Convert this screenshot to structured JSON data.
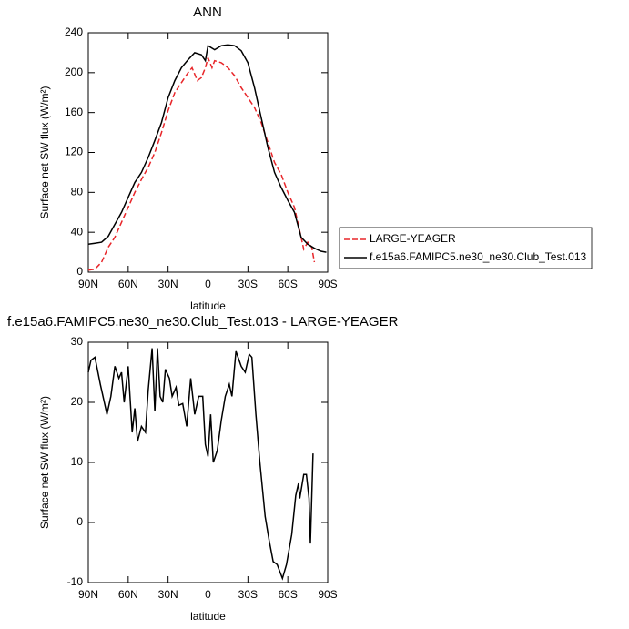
{
  "chart_data": [
    {
      "type": "line",
      "title": "ANN",
      "xlabel": "latitude",
      "ylabel": "Surface net SW flux (W/m²)",
      "xlim": [
        90,
        -90
      ],
      "xticks": [
        {
          "value": 90,
          "label": "90N"
        },
        {
          "value": 60,
          "label": "60N"
        },
        {
          "value": 30,
          "label": "30N"
        },
        0,
        {
          "value": -30,
          "label": "30S"
        },
        {
          "value": -60,
          "label": "60S"
        },
        {
          "value": -90,
          "label": "90S"
        }
      ],
      "ylim": [
        0,
        240
      ],
      "yticks": [
        0,
        40,
        80,
        120,
        160,
        200,
        240
      ],
      "legend": "right",
      "series": [
        {
          "name": "LARGE-YEAGER",
          "color": "#e8262a",
          "line_style": "dashed",
          "x": [
            90,
            85,
            80,
            75,
            70,
            65,
            60,
            55,
            50,
            45,
            40,
            35,
            30,
            25,
            20,
            15,
            12,
            8,
            5,
            2,
            0,
            -3,
            -5,
            -10,
            -15,
            -20,
            -25,
            -30,
            -35,
            -40,
            -45,
            -50,
            -55,
            -60,
            -65,
            -70,
            -72,
            -75,
            -78,
            -80
          ],
          "values": [
            2,
            3,
            10,
            25,
            35,
            50,
            65,
            80,
            93,
            105,
            120,
            140,
            162,
            180,
            190,
            200,
            205,
            192,
            195,
            205,
            215,
            205,
            212,
            210,
            205,
            197,
            185,
            175,
            165,
            150,
            130,
            110,
            98,
            80,
            65,
            35,
            23,
            30,
            25,
            10
          ]
        },
        {
          "name": "f.e15a6.FAMIPC5.ne30_ne30.Club_Test.013",
          "color": "#000000",
          "line_style": "solid",
          "x": [
            90,
            85,
            80,
            75,
            70,
            65,
            60,
            55,
            50,
            45,
            40,
            35,
            30,
            25,
            20,
            15,
            10,
            5,
            2,
            0,
            -5,
            -10,
            -15,
            -20,
            -25,
            -30,
            -35,
            -40,
            -45,
            -50,
            -55,
            -60,
            -65,
            -70,
            -75,
            -80,
            -85,
            -89
          ],
          "values": [
            28,
            29,
            30,
            36,
            48,
            60,
            75,
            90,
            100,
            115,
            132,
            150,
            175,
            192,
            205,
            213,
            220,
            218,
            212,
            227,
            223,
            227,
            228,
            227,
            222,
            210,
            185,
            155,
            125,
            100,
            85,
            72,
            60,
            35,
            28,
            24,
            21,
            20
          ]
        }
      ]
    },
    {
      "type": "line",
      "title": "f.e15a6.FAMIPC5.ne30_ne30.Club_Test.013 - LARGE-YEAGER",
      "xlabel": "latitude",
      "ylabel": "Surface net SW flux (W/m²)",
      "xlim": [
        90,
        -90
      ],
      "xticks": [
        {
          "value": 90,
          "label": "90N"
        },
        {
          "value": 60,
          "label": "60N"
        },
        {
          "value": 30,
          "label": "30N"
        },
        0,
        {
          "value": -30,
          "label": "30S"
        },
        {
          "value": -60,
          "label": "60S"
        },
        {
          "value": -90,
          "label": "90S"
        }
      ],
      "ylim": [
        -10,
        30
      ],
      "yticks": [
        -10,
        0,
        10,
        20,
        30
      ],
      "series": [
        {
          "color": "#000000",
          "line_style": "solid",
          "x": [
            90,
            88,
            85,
            81,
            76,
            73,
            70,
            67,
            65,
            63,
            60,
            57,
            55,
            53,
            50,
            47,
            45,
            42,
            40,
            38,
            36,
            34,
            32,
            29,
            27,
            24,
            22,
            19,
            16,
            13,
            10,
            7,
            4,
            2,
            0,
            -2,
            -4,
            -7,
            -10,
            -13,
            -16,
            -18,
            -21,
            -25,
            -28,
            -31,
            -33,
            -36,
            -39,
            -43,
            -46,
            -49,
            -52,
            -56,
            -59,
            -63,
            -66,
            -68,
            -69,
            -72,
            -74,
            -76,
            -77,
            -79
          ],
          "values": [
            25,
            27,
            27.5,
            23,
            18,
            21,
            26,
            24,
            25,
            20,
            26,
            15,
            19,
            13.5,
            16,
            15,
            22,
            29,
            18.5,
            29,
            21,
            20,
            25.5,
            24,
            21,
            22.5,
            19.5,
            19.8,
            16,
            24,
            18,
            21,
            21,
            13,
            11,
            18,
            10,
            12,
            17,
            21,
            23,
            21,
            28.5,
            26,
            25,
            28,
            27.5,
            18,
            10,
            1,
            -3,
            -6.5,
            -7,
            -9.3,
            -7,
            -2,
            4.5,
            6.5,
            4,
            8,
            8,
            4,
            -3.5,
            11.5
          ]
        }
      ]
    }
  ]
}
